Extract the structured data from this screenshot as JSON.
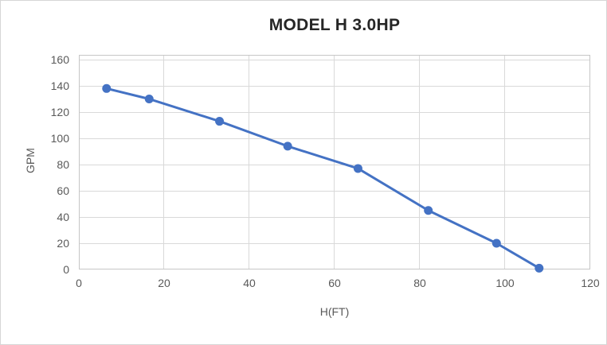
{
  "chart": {
    "title": "MODEL H 3.0HP"
  },
  "chart_data": {
    "type": "line",
    "title": "MODEL H 3.0HP",
    "xlabel": "H(FT)",
    "ylabel": "GPM",
    "series": [
      {
        "name": "MODEL H 3.0HP",
        "x": [
          6.5,
          16.5,
          33,
          49,
          65.5,
          82,
          98,
          108
        ],
        "y": [
          138,
          130,
          113,
          94,
          77,
          45,
          20,
          1
        ]
      }
    ],
    "xlim": [
      0,
      120
    ],
    "ylim": [
      0,
      160
    ],
    "xticks": [
      0,
      20,
      40,
      60,
      80,
      100,
      120
    ],
    "yticks": [
      0,
      20,
      40,
      60,
      80,
      100,
      120,
      140,
      160
    ],
    "grid": true,
    "legend": false,
    "marker": "circle",
    "line_color": "#4472C4",
    "marker_color": "#4472C4",
    "gridline_color": "#D9D9D9",
    "axis_color": "#C6C6C6",
    "tick_label_color": "#595959",
    "title_color": "#262626"
  }
}
